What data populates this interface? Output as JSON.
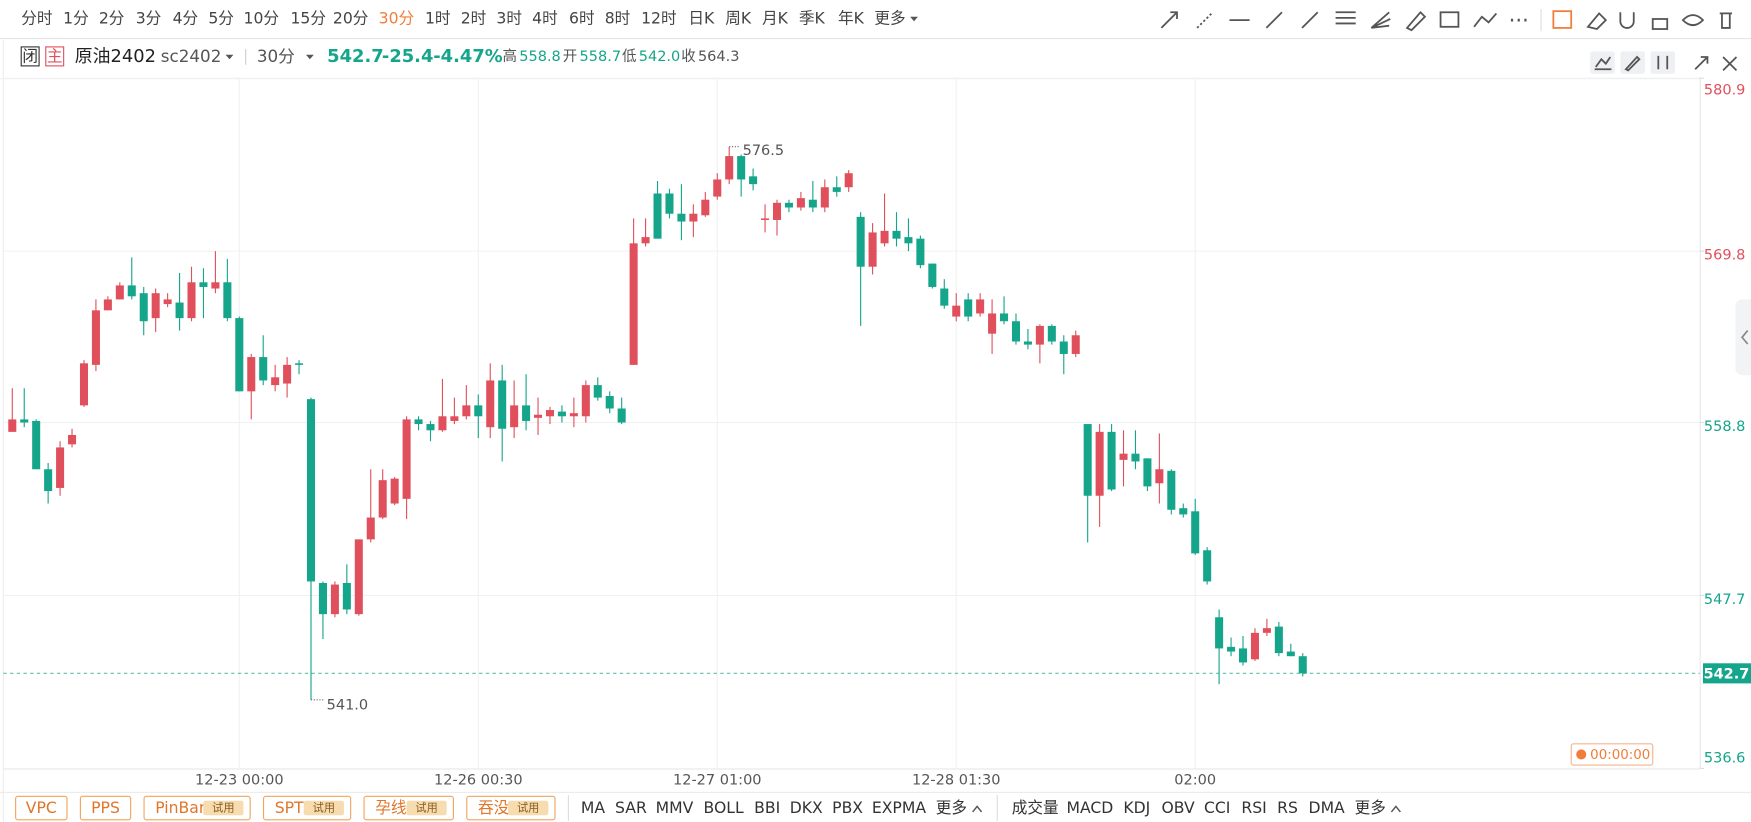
{
  "toolbar": {
    "periods": [
      "分时",
      "1分",
      "2分",
      "3分",
      "4分",
      "5分",
      "10分",
      "15分",
      "20分",
      "30分",
      "1时",
      "2时",
      "3时",
      "4时",
      "6时",
      "8时",
      "12时",
      "日K",
      "周K",
      "月K",
      "季K",
      "年K"
    ],
    "active": "30分",
    "more": "更多"
  },
  "header": {
    "status": "闭",
    "main": "主",
    "name": "原油2402",
    "code": "sc2402",
    "period": "30分",
    "last": "542.7",
    "change": "-25.4",
    "pct": "-4.47%",
    "high_label": "高",
    "high": "558.8",
    "open_label": "开",
    "open": "558.7",
    "low_label": "低",
    "low": "542.0",
    "close_label": "收",
    "close": "564.3"
  },
  "chart_data": {
    "type": "candlestick",
    "categories": [
      null,
      null,
      null,
      null,
      null,
      null,
      null,
      null,
      null,
      null,
      null,
      null,
      null,
      null,
      null,
      null,
      null,
      null,
      null,
      "12-23 00:00",
      null,
      null,
      null,
      null,
      null,
      null,
      null,
      null,
      null,
      null,
      null,
      null,
      null,
      null,
      null,
      null,
      null,
      null,
      null,
      "12-26 00:30",
      null,
      null,
      null,
      null,
      null,
      null,
      null,
      null,
      null,
      null,
      null,
      null,
      null,
      null,
      null,
      null,
      null,
      null,
      null,
      "12-27 01:00",
      null,
      null,
      null,
      null,
      null,
      null,
      null,
      null,
      null,
      null,
      null,
      null,
      null,
      null,
      null,
      null,
      null,
      null,
      null,
      "12-28 01:30",
      null,
      null,
      null,
      null,
      null,
      null,
      null,
      null,
      null,
      null,
      null,
      null,
      null,
      null,
      null,
      null,
      null,
      null,
      null,
      "02:00",
      null,
      null,
      null,
      null,
      null,
      null,
      null,
      null,
      null
    ],
    "open": [
      558.2,
      559.0,
      558.9,
      555.8,
      554.6,
      557.4,
      559.9,
      562.5,
      566.0,
      566.7,
      567.6,
      567.1,
      565.5,
      566.4,
      566.5,
      565.5,
      567.8,
      567.4,
      567.8,
      565.5,
      560.8,
      563.0,
      561.2,
      561.3,
      562.6,
      560.3,
      548.5,
      546.5,
      548.5,
      546.5,
      551.3,
      552.7,
      553.6,
      553.9,
      559.0,
      558.7,
      558.3,
      558.9,
      559.2,
      559.9,
      558.5,
      561.5,
      558.5,
      559.9,
      559.1,
      559.2,
      559.5,
      559.2,
      559.2,
      561.2,
      560.5,
      559.7,
      562.5,
      570.3,
      573.5,
      573.5,
      572.2,
      571.7,
      572.1,
      573.3,
      574.4,
      575.9,
      574.6,
      571.8,
      571.8,
      572.9,
      572.6,
      573.1,
      572.6,
      573.9,
      573.9,
      572.0,
      568.8,
      570.3,
      571.1,
      570.7,
      570.6,
      569.0,
      567.4,
      565.6,
      566.7,
      565.8,
      564.5,
      565.8,
      565.3,
      564.0,
      563.8,
      565.0,
      564.0,
      563.2,
      558.7,
      554.1,
      558.2,
      556.4,
      556.8,
      556.5,
      554.9,
      555.7,
      553.3,
      553.1,
      550.6,
      546.3,
      544.4,
      544.3,
      543.6,
      545.3,
      545.7,
      544.1,
      543.8
    ],
    "high": [
      561.0,
      561.0,
      559.0,
      556.2,
      557.6,
      558.4,
      562.8,
      566.7,
      566.9,
      567.8,
      569.4,
      567.5,
      567.4,
      567.1,
      568.4,
      568.8,
      568.7,
      569.8,
      569.3,
      565.6,
      563.2,
      564.4,
      562.5,
      563.0,
      562.8,
      560.4,
      548.6,
      548.6,
      549.7,
      551.3,
      555.8,
      555.8,
      555.3,
      559.2,
      559.2,
      558.9,
      561.6,
      560.4,
      561.2,
      560.6,
      562.6,
      562.5,
      561.5,
      561.9,
      560.4,
      559.8,
      559.9,
      560.4,
      561.5,
      561.7,
      560.8,
      560.4,
      571.9,
      571.9,
      574.3,
      573.8,
      574.1,
      572.8,
      573.6,
      574.8,
      576.5,
      576.0,
      575.1,
      572.8,
      573.1,
      573.1,
      573.6,
      574.3,
      574.4,
      574.6,
      575.0,
      572.3,
      571.6,
      573.5,
      572.3,
      571.9,
      570.8,
      569.0,
      568.0,
      567.1,
      567.1,
      567.1,
      566.7,
      566.9,
      565.8,
      564.8,
      565.1,
      565.1,
      564.4,
      564.7,
      558.7,
      558.7,
      558.7,
      558.3,
      558.3,
      556.5,
      558.1,
      555.8,
      553.6,
      553.9,
      550.8,
      546.8,
      545.0,
      545.1,
      545.6,
      546.2,
      546.0,
      544.6,
      544.0
    ],
    "low": [
      558.2,
      558.5,
      555.8,
      553.6,
      554.1,
      557.2,
      559.8,
      562.1,
      566.0,
      566.7,
      566.7,
      564.4,
      564.6,
      566.2,
      564.7,
      565.3,
      565.5,
      567.1,
      565.3,
      560.8,
      559.0,
      561.2,
      560.8,
      560.4,
      561.9,
      541.0,
      544.9,
      546.3,
      546.5,
      546.4,
      551.1,
      552.6,
      553.5,
      552.6,
      558.3,
      557.6,
      558.2,
      558.7,
      559.0,
      557.8,
      557.8,
      556.3,
      557.8,
      558.3,
      558.0,
      558.7,
      558.8,
      558.5,
      558.8,
      560.2,
      559.4,
      558.7,
      562.5,
      570.1,
      570.6,
      571.9,
      570.5,
      570.7,
      572.0,
      573.1,
      574.1,
      573.3,
      573.7,
      571.0,
      570.8,
      572.3,
      572.4,
      572.3,
      572.3,
      573.3,
      573.6,
      565.0,
      568.3,
      570.1,
      570.1,
      569.8,
      568.7,
      567.4,
      566.1,
      565.3,
      565.3,
      565.6,
      563.2,
      565.1,
      563.8,
      563.5,
      562.6,
      563.8,
      561.9,
      563.0,
      551.1,
      552.1,
      554.4,
      554.7,
      555.8,
      554.4,
      553.6,
      552.9,
      552.7,
      550.3,
      548.4,
      542.0,
      543.8,
      543.2,
      543.5,
      545.1,
      543.8,
      543.8,
      542.5
    ],
    "close": [
      559.0,
      558.8,
      555.8,
      554.4,
      557.2,
      558.0,
      562.6,
      566.0,
      566.7,
      567.6,
      566.9,
      565.3,
      567.1,
      566.7,
      565.5,
      567.8,
      567.5,
      567.8,
      565.5,
      560.8,
      563.0,
      561.5,
      561.7,
      562.5,
      562.5,
      548.6,
      546.5,
      548.4,
      546.8,
      551.3,
      552.7,
      555.1,
      555.2,
      559.0,
      558.7,
      558.3,
      559.2,
      559.2,
      559.9,
      559.2,
      561.5,
      558.4,
      559.9,
      558.9,
      559.3,
      559.6,
      559.2,
      559.4,
      561.2,
      560.4,
      559.7,
      558.8,
      570.3,
      570.7,
      570.6,
      572.2,
      571.7,
      572.2,
      573.1,
      574.4,
      575.9,
      574.4,
      574.1,
      571.9,
      572.9,
      572.6,
      573.2,
      572.6,
      573.9,
      573.6,
      574.8,
      568.8,
      571.0,
      571.1,
      570.6,
      570.3,
      568.9,
      567.5,
      566.3,
      566.3,
      565.6,
      566.7,
      565.8,
      565.3,
      564.0,
      563.8,
      565.0,
      564.0,
      563.2,
      564.4,
      554.1,
      558.2,
      554.5,
      556.8,
      556.3,
      554.7,
      555.8,
      553.2,
      552.9,
      550.4,
      548.6,
      544.3,
      544.1,
      543.4,
      545.3,
      545.6,
      544.0,
      543.8,
      542.7
    ],
    "extreme_labels": {
      "high": "576.5",
      "low": "541.0"
    },
    "ylim": [
      536.6,
      580.9
    ],
    "yticks": [
      536.6,
      547.7,
      558.8,
      569.8,
      580.9
    ],
    "grid": true,
    "up_color": "#e0505c",
    "down_color": "#15a58a",
    "countdown": "00:00:00"
  },
  "indicators": {
    "patterns": [
      {
        "name": "VPC"
      },
      {
        "name": "PPS"
      },
      {
        "name": "PinBar",
        "badge": "试用"
      },
      {
        "name": "SPT",
        "badge": "试用"
      },
      {
        "name": "孕线",
        "badge": "试用"
      },
      {
        "name": "吞没",
        "badge": "试用"
      }
    ],
    "main": [
      "MA",
      "SAR",
      "MMV",
      "BOLL",
      "BBI",
      "DKX",
      "PBX",
      "EXPMA"
    ],
    "sub": [
      "成交量",
      "MACD",
      "KDJ",
      "OBV",
      "CCI",
      "RSI",
      "RS",
      "DMA"
    ],
    "more": "更多"
  }
}
